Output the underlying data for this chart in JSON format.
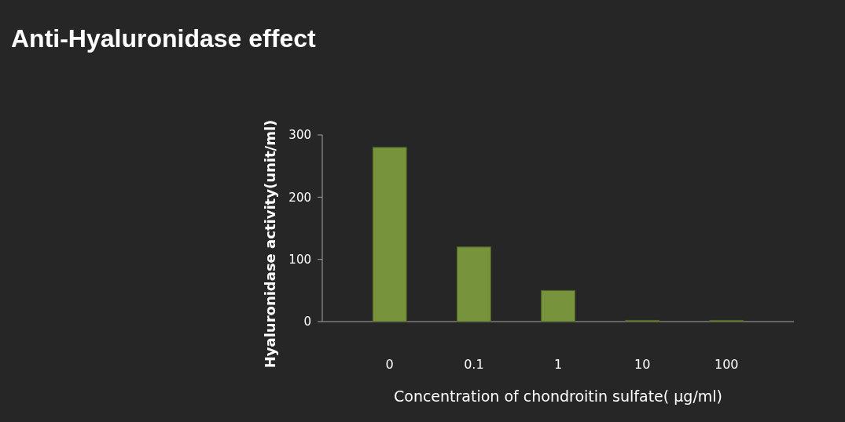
{
  "chart_data": {
    "type": "bar",
    "title": "Anti-Hyaluronidase effect",
    "xlabel": "Concentration of chondroitin sulfate( μg/ml)",
    "ylabel": "Hyaluronidase  activity(unit/ml)",
    "categories": [
      "0",
      "0.1",
      "1",
      "10",
      "100"
    ],
    "values": [
      280,
      120,
      50,
      2,
      2
    ],
    "color": "#77933c",
    "ylim": [
      0,
      300
    ],
    "yticks": [
      0,
      100,
      200,
      300
    ],
    "grid": false
  }
}
